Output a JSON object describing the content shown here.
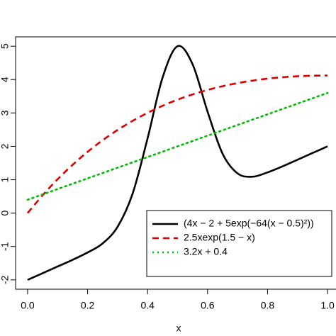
{
  "chart_data": {
    "type": "line",
    "x_label": "x",
    "x": [
      0,
      0.05,
      0.1,
      0.15,
      0.2,
      0.25,
      0.3,
      0.35,
      0.4,
      0.45,
      0.5,
      0.55,
      0.6,
      0.65,
      0.7,
      0.75,
      0.8,
      0.85,
      0.9,
      0.95,
      1
    ],
    "series": [
      {
        "name": "(4x − 2 + 5exp(−64(x − 0.5)²))",
        "color": "#000000",
        "dash": "solid",
        "values": [
          -2.0,
          -1.8,
          -1.6,
          -1.4,
          -1.18,
          -0.91,
          -0.41,
          0.58,
          2.24,
          4.06,
          5.0,
          4.46,
          3.04,
          1.78,
          1.19,
          1.09,
          1.22,
          1.4,
          1.6,
          1.8,
          2.0
        ]
      },
      {
        "name": "2.5xexp(1.5 − x)",
        "color": "#dd0000",
        "dash": "dashed",
        "values": [
          0,
          0.533,
          1.014,
          1.446,
          1.835,
          2.181,
          2.49,
          2.763,
          3.004,
          3.215,
          3.398,
          3.555,
          3.69,
          3.802,
          3.895,
          3.969,
          4.028,
          4.071,
          4.1,
          4.116,
          4.122
        ]
      },
      {
        "name": "3.2x + 0.4",
        "color": "#00bb00",
        "dash": "dotted",
        "values": [
          0.4,
          0.56,
          0.72,
          0.88,
          1.04,
          1.2,
          1.36,
          1.52,
          1.68,
          1.84,
          2.0,
          2.16,
          2.32,
          2.48,
          2.64,
          2.8,
          2.96,
          3.12,
          3.28,
          3.44,
          3.6
        ]
      }
    ],
    "xlim": [
      -0.04,
      1.04
    ],
    "ylim": [
      -2.28,
      5.28
    ],
    "xticks": [
      {
        "value": 0,
        "label": "0.0"
      },
      {
        "value": 0.2,
        "label": "0.2"
      },
      {
        "value": 0.4,
        "label": "0.4"
      },
      {
        "value": 0.6,
        "label": "0.6"
      },
      {
        "value": 0.8,
        "label": "0.8"
      },
      {
        "value": 1,
        "label": "1.0"
      }
    ],
    "yticks": [
      -2,
      -1,
      0,
      1,
      2,
      3,
      4,
      5
    ],
    "legend": "bottom-right"
  }
}
